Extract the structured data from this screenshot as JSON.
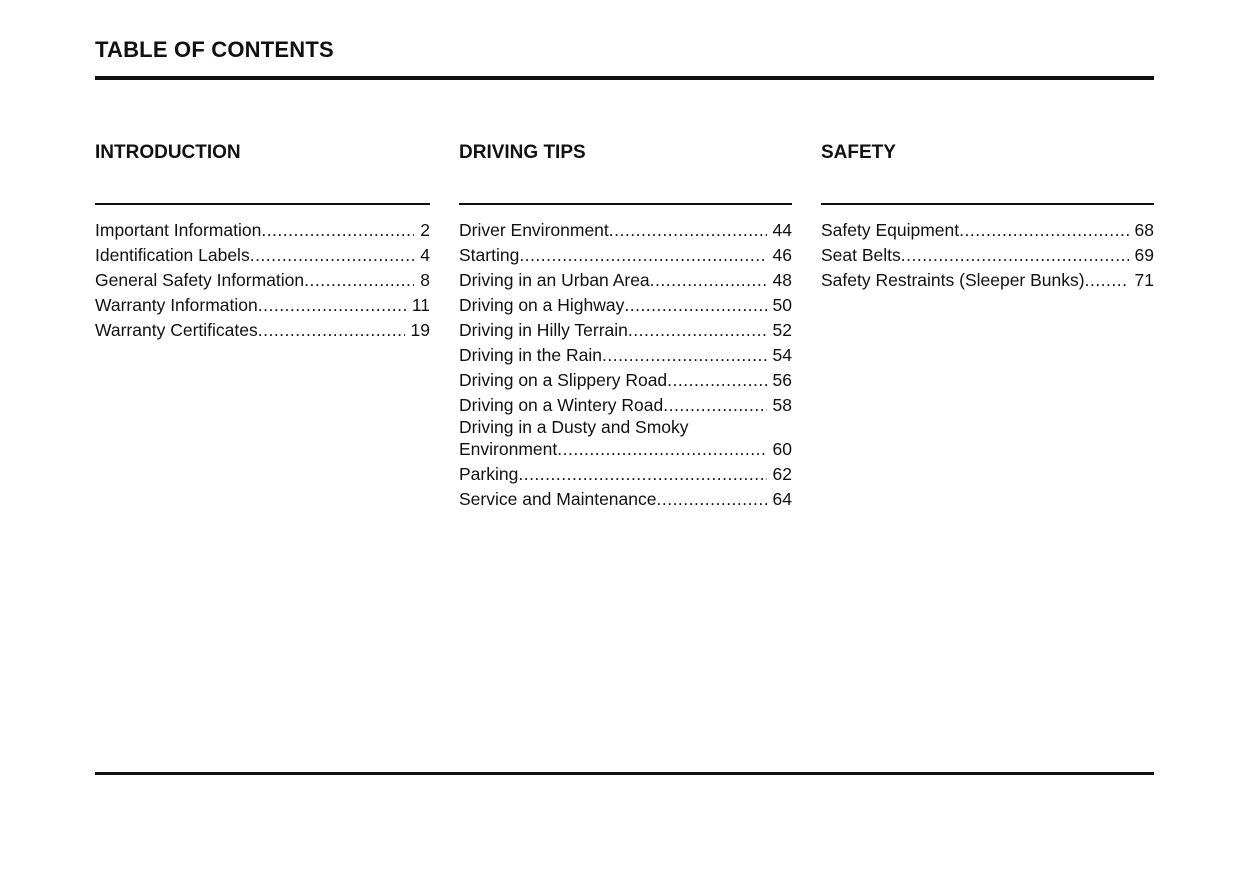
{
  "title": "TABLE OF CONTENTS",
  "sections": [
    {
      "heading": "INTRODUCTION",
      "entries": [
        {
          "label": "Important Information",
          "page": "2"
        },
        {
          "label": "Identification Labels",
          "page": "4"
        },
        {
          "label": "General Safety Information",
          "page": "8"
        },
        {
          "label": "Warranty Information",
          "page": "11"
        },
        {
          "label": "Warranty Certificates",
          "page": "19"
        }
      ]
    },
    {
      "heading": "DRIVING TIPS",
      "entries": [
        {
          "label": "Driver Environment",
          "page": "44"
        },
        {
          "label": "Starting",
          "page": "46"
        },
        {
          "label": "Driving in an Urban Area",
          "page": "48"
        },
        {
          "label": "Driving on a Highway",
          "page": "50"
        },
        {
          "label": "Driving in Hilly Terrain",
          "page": "52"
        },
        {
          "label": "Driving in the Rain",
          "page": "54"
        },
        {
          "label": "Driving on a Slippery Road",
          "page": "56"
        },
        {
          "label": "Driving on a Wintery Road",
          "page": "58"
        },
        {
          "label_pre": "Driving in a Dusty and Smoky",
          "label": "Environment",
          "page": "60"
        },
        {
          "label": "Parking",
          "page": "62"
        },
        {
          "label": "Service and Maintenance",
          "page": "64"
        }
      ]
    },
    {
      "heading": "SAFETY",
      "entries": [
        {
          "label": "Safety Equipment",
          "page": "68"
        },
        {
          "label": "Seat Belts",
          "page": "69"
        },
        {
          "label": "Safety Restraints (Sleeper Bunks)",
          "page": "71"
        }
      ]
    }
  ]
}
